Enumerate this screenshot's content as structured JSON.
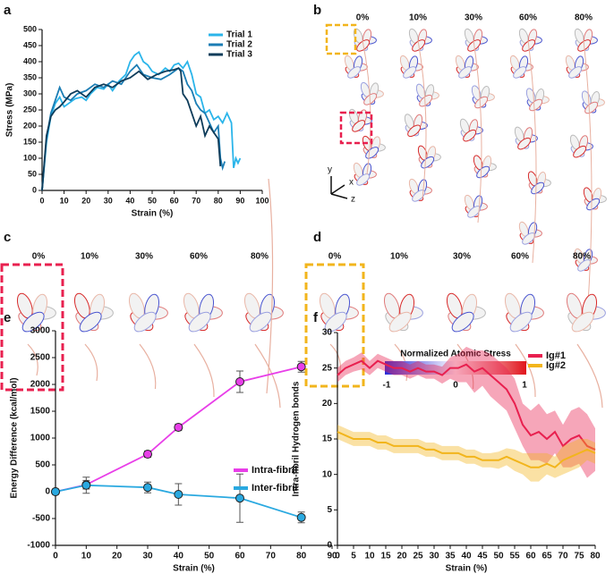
{
  "panel_letters": [
    "a",
    "b",
    "c",
    "d",
    "e",
    "f"
  ],
  "panel_b": {
    "strains": [
      "0%",
      "10%",
      "30%",
      "60%",
      "80%"
    ],
    "axes": [
      "y",
      "x",
      "z"
    ]
  },
  "panel_c": {
    "strains": [
      "0%",
      "10%",
      "30%",
      "60%",
      "80%"
    ]
  },
  "panel_d": {
    "strains": [
      "0%",
      "10%",
      "30%",
      "60%",
      "80%"
    ]
  },
  "colorbar": {
    "title": "Normalized Atomic Stress",
    "ticks": [
      -1,
      0,
      1
    ]
  },
  "chart_data": [
    {
      "type": "line",
      "xlabel": "Strain (%)",
      "ylabel": "Stress (MPa)",
      "xlim": [
        0,
        100
      ],
      "xticks": [
        0,
        10,
        20,
        30,
        40,
        50,
        60,
        70,
        80,
        90,
        100
      ],
      "ylim": [
        0,
        500
      ],
      "yticks": [
        0,
        50,
        100,
        150,
        200,
        250,
        300,
        350,
        400,
        450,
        500
      ],
      "legend": "upper right",
      "series": [
        {
          "name": "Trial 1",
          "color": "#2bb5ea",
          "x": [
            0,
            2,
            4,
            6,
            8,
            10,
            12,
            15,
            18,
            20,
            22,
            25,
            28,
            30,
            32,
            35,
            38,
            40,
            42,
            44,
            46,
            48,
            50,
            53,
            56,
            58,
            60,
            62,
            64,
            66,
            68,
            70,
            72,
            74,
            76,
            78,
            80,
            82,
            84,
            86,
            87,
            88,
            89,
            90
          ],
          "values": [
            0,
            150,
            230,
            270,
            290,
            260,
            270,
            285,
            290,
            280,
            300,
            320,
            315,
            330,
            310,
            340,
            360,
            400,
            420,
            430,
            400,
            390,
            370,
            360,
            380,
            370,
            390,
            395,
            380,
            400,
            360,
            300,
            290,
            240,
            250,
            220,
            230,
            210,
            240,
            210,
            70,
            100,
            85,
            100
          ]
        },
        {
          "name": "Trial 2",
          "color": "#1b7db4",
          "x": [
            0,
            2,
            4,
            6,
            8,
            10,
            13,
            16,
            20,
            24,
            28,
            32,
            36,
            40,
            43,
            46,
            50,
            54,
            58,
            62,
            64,
            66,
            68,
            70,
            72,
            74,
            76,
            78,
            80,
            81,
            82,
            83
          ],
          "values": [
            0,
            160,
            240,
            280,
            320,
            290,
            280,
            300,
            310,
            330,
            320,
            340,
            330,
            370,
            390,
            360,
            350,
            345,
            360,
            380,
            370,
            330,
            310,
            270,
            250,
            240,
            210,
            180,
            200,
            100,
            70,
            90
          ]
        },
        {
          "name": "Trial 3",
          "color": "#0e3c5a",
          "x": [
            0,
            2,
            4,
            6,
            8,
            10,
            13,
            16,
            20,
            24,
            28,
            32,
            36,
            40,
            44,
            48,
            52,
            56,
            60,
            62,
            63,
            64,
            66,
            68,
            70,
            72,
            74,
            76,
            78,
            80,
            81
          ],
          "values": [
            0,
            170,
            230,
            250,
            260,
            275,
            300,
            310,
            290,
            320,
            330,
            320,
            340,
            350,
            370,
            345,
            360,
            370,
            375,
            380,
            370,
            300,
            280,
            240,
            200,
            230,
            170,
            200,
            180,
            160,
            75
          ]
        }
      ]
    },
    {
      "type": "line",
      "xlabel": "Strain (%)",
      "ylabel": "Energy Difference (kcal/mol)",
      "xlim": [
        0,
        90
      ],
      "xticks": [
        0,
        10,
        20,
        30,
        40,
        50,
        60,
        70,
        80,
        90
      ],
      "ylim": [
        -1000,
        3000
      ],
      "yticks": [
        -1000,
        -500,
        0,
        500,
        1000,
        1500,
        2000,
        2500,
        3000
      ],
      "legend": "center right",
      "x": [
        0,
        10,
        30,
        40,
        60,
        80
      ],
      "series": [
        {
          "name": "Intra-fibril",
          "color": "#e83ee8",
          "values": [
            0,
            130,
            700,
            1200,
            2050,
            2330
          ],
          "errors": [
            50,
            80,
            60,
            60,
            200,
            100
          ]
        },
        {
          "name": "Inter-fibril",
          "color": "#2aa9e0",
          "values": [
            0,
            120,
            80,
            -50,
            -120,
            -480
          ],
          "errors": [
            30,
            150,
            100,
            200,
            450,
            100
          ]
        }
      ]
    },
    {
      "type": "line",
      "xlabel": "Strain (%)",
      "ylabel": "Intra-fibril Hydrogen bonds",
      "xlim": [
        0,
        80
      ],
      "xticks": [
        0,
        5,
        10,
        15,
        20,
        25,
        30,
        35,
        40,
        45,
        50,
        55,
        60,
        65,
        70,
        75,
        80
      ],
      "ylim": [
        0,
        30
      ],
      "yticks": [
        0,
        5,
        10,
        15,
        20,
        25,
        30
      ],
      "legend": "upper right",
      "x": [
        0,
        2.5,
        5,
        7.5,
        10,
        12.5,
        15,
        17.5,
        20,
        22.5,
        25,
        27.5,
        30,
        32.5,
        35,
        37.5,
        40,
        42.5,
        45,
        47.5,
        50,
        52.5,
        55,
        57.5,
        60,
        62.5,
        65,
        67.5,
        70,
        72.5,
        75,
        77.5,
        80
      ],
      "series": [
        {
          "name": "Ig#1",
          "color": "#e8204f",
          "values": [
            24,
            25,
            25.5,
            26,
            25,
            26,
            25.5,
            25,
            25,
            24.5,
            25,
            24.5,
            24.5,
            24,
            25,
            25,
            25.5,
            24.5,
            25,
            24,
            23,
            22,
            20,
            17,
            15.5,
            16,
            15,
            16,
            14,
            15,
            15.5,
            14,
            13.5
          ],
          "spread": [
            1,
            1,
            1,
            1.2,
            1,
            1,
            1,
            1,
            1,
            1,
            1,
            1,
            1,
            1.2,
            1.5,
            2,
            2.5,
            3,
            2.5,
            3,
            3,
            3,
            3.5,
            3,
            3.5,
            4,
            3.5,
            3,
            3,
            4,
            4,
            4.5,
            3
          ]
        },
        {
          "name": "Ig#2",
          "color": "#f2b51c",
          "values": [
            16,
            15.5,
            15,
            15,
            15,
            14.5,
            14.5,
            14,
            14,
            14,
            14,
            13.5,
            13.5,
            13,
            13,
            13,
            12.5,
            12.5,
            12,
            12,
            12,
            12.5,
            12,
            11.5,
            11,
            11,
            11.5,
            11,
            12,
            12.5,
            13,
            13.5,
            13
          ],
          "spread": [
            1,
            1,
            1,
            1,
            1,
            1,
            1,
            1,
            1,
            1,
            1,
            1,
            1,
            1,
            1,
            1,
            1,
            1,
            1,
            1,
            1.2,
            1.2,
            1.5,
            1.5,
            2,
            2,
            1.5,
            1.5,
            2,
            2,
            2,
            1.5,
            1.5
          ]
        }
      ]
    }
  ]
}
